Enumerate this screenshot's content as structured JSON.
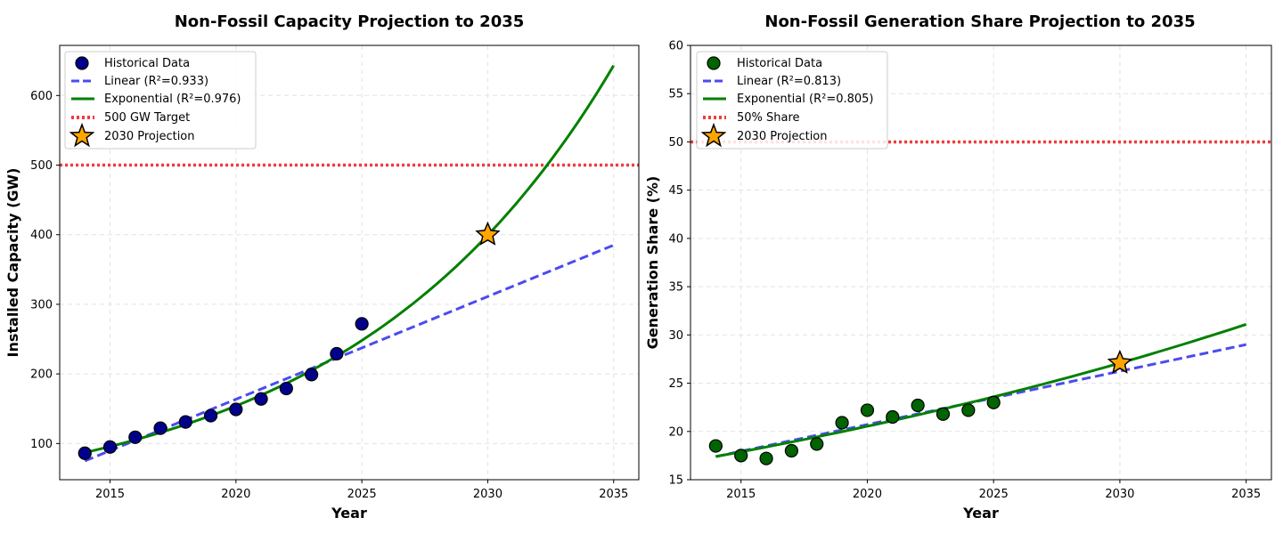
{
  "chart_data": [
    {
      "type": "line",
      "title": "Non-Fossil Capacity Projection to 2035",
      "xlabel": "Year",
      "ylabel": "Installed Capacity (GW)",
      "xlim": [
        2013,
        2036
      ],
      "ylim": [
        48,
        672
      ],
      "xticks": [
        2015,
        2020,
        2025,
        2030,
        2035
      ],
      "yticks": [
        100,
        200,
        300,
        400,
        500,
        600
      ],
      "grid": true,
      "legend_position": "top-left",
      "colors": {
        "historical": "#00008B",
        "linear": "#4B4BF0",
        "exponential": "#008000",
        "target": "#F03C3C",
        "projection": "#FFA500"
      },
      "legend": [
        "Historical Data",
        "Linear (R²=0.933)",
        "Exponential (R²=0.976)",
        "500 GW Target",
        "2030 Projection"
      ],
      "historical": {
        "x": [
          2014,
          2015,
          2016,
          2017,
          2018,
          2019,
          2020,
          2021,
          2022,
          2023,
          2024,
          2025
        ],
        "y": [
          86,
          95,
          109,
          122,
          131,
          140,
          149,
          164,
          179,
          199,
          229,
          272
        ]
      },
      "linear_fit": {
        "x": [
          2014,
          2035
        ],
        "y": [
          75,
          385
        ]
      },
      "exponential_fit": {
        "x0": 2014,
        "y0": 87,
        "x1": 2035,
        "y1": 643
      },
      "target": 500,
      "projection": {
        "x": 2030,
        "y": 400
      }
    },
    {
      "type": "line",
      "title": "Non-Fossil Generation Share Projection to 2035",
      "xlabel": "Year",
      "ylabel": "Generation Share (%)",
      "xlim": [
        2013,
        2036
      ],
      "ylim": [
        15,
        60
      ],
      "xticks": [
        2015,
        2020,
        2025,
        2030,
        2035
      ],
      "yticks": [
        15,
        20,
        25,
        30,
        35,
        40,
        45,
        50,
        55,
        60
      ],
      "grid": true,
      "legend_position": "top-left",
      "colors": {
        "historical": "#006400",
        "linear": "#4B4BF0",
        "exponential": "#008000",
        "target": "#F03C3C",
        "projection": "#FFA500"
      },
      "legend": [
        "Historical Data",
        "Linear (R²=0.813)",
        "Exponential (R²=0.805)",
        "50% Share",
        "2030 Projection"
      ],
      "historical": {
        "x": [
          2014,
          2015,
          2016,
          2017,
          2018,
          2019,
          2020,
          2021,
          2022,
          2023,
          2024,
          2025
        ],
        "y": [
          18.5,
          17.5,
          17.2,
          18.0,
          18.7,
          20.9,
          22.2,
          21.5,
          22.7,
          21.8,
          22.2,
          23.0
        ]
      },
      "linear_fit": {
        "x": [
          2014,
          2035
        ],
        "y": [
          17.4,
          29.0
        ]
      },
      "exponential_fit": {
        "x0": 2014,
        "y0": 17.4,
        "x1": 2035,
        "y1": 31.1
      },
      "target": 50,
      "projection": {
        "x": 2030,
        "y": 27.1
      }
    }
  ]
}
